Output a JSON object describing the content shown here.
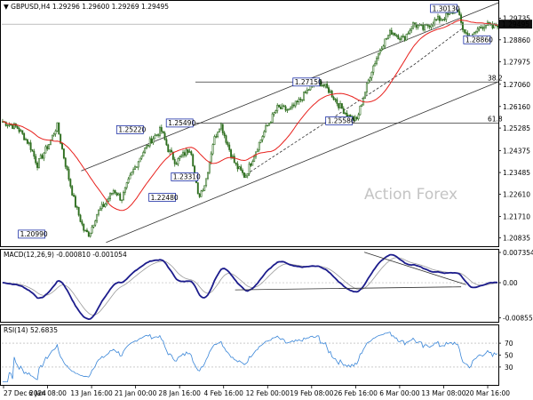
{
  "chart_data": [
    {
      "type": "candlestick",
      "symbol_line": "GBPUSD,H4  1.29296 1.29600 1.29269 1.29495",
      "watermark": "Action Forex",
      "last_price": "1.29495",
      "last_price_value": 1.29495,
      "ylim": [
        1.205,
        1.304
      ],
      "y_ticks": [
        "1.29735",
        "1.29495",
        "1.28860",
        "1.27975",
        "1.27060",
        "1.26160",
        "1.25285",
        "1.24375",
        "1.23485",
        "1.22610",
        "1.21710",
        "1.20835"
      ],
      "y_tick_values": [
        1.29735,
        1.29495,
        1.2886,
        1.27975,
        1.2706,
        1.2616,
        1.25285,
        1.24375,
        1.23485,
        1.2261,
        1.2171,
        1.20835
      ],
      "x_tick_labels": [
        "27 Dec 2024",
        "6 Jan 08:00",
        "13 Jan 16:00",
        "21 Jan 00:00",
        "28 Jan 16:00",
        "4 Feb 16:00",
        "12 Feb 00:00",
        "19 Feb 08:00",
        "26 Feb 16:00",
        "6 Mar 00:00",
        "13 Mar 08:00",
        "20 Mar 16:00"
      ],
      "price_labels": [
        {
          "text": "1.20990",
          "value": 1.2099,
          "at": 0.087,
          "side": "left"
        },
        {
          "text": "1.22480",
          "value": 1.2248,
          "at": 0.35,
          "side": "left"
        },
        {
          "text": "1.23310",
          "value": 1.2331,
          "at": 0.395,
          "side": "left"
        },
        {
          "text": "1.25220",
          "value": 1.2522,
          "at": 0.285,
          "side": "left"
        },
        {
          "text": "1.25490",
          "value": 1.2549,
          "at": 0.385,
          "side": "left"
        },
        {
          "text": "1.27150",
          "value": 1.2715,
          "at": 0.64,
          "side": "left"
        },
        {
          "text": "1.25580",
          "value": 1.2558,
          "at": 0.706,
          "side": "left"
        },
        {
          "text": "1.30130",
          "value": 1.3013,
          "at": 0.917,
          "side": "left"
        },
        {
          "text": "1.28860",
          "value": 1.2886,
          "at": 0.93,
          "side": "right"
        }
      ],
      "fib_levels": [
        {
          "label": "38.2",
          "value": 1.2715
        },
        {
          "label": "61.8",
          "value": 1.2549
        }
      ],
      "channel_lines": [
        {
          "points": [
            [
              0.16,
              1.2355
            ],
            [
              1.0,
              1.3036
            ]
          ]
        },
        {
          "points": [
            [
              0.21,
              1.2065
            ],
            [
              1.0,
              1.2716
            ]
          ]
        },
        {
          "points": [
            [
              0.5,
              1.2351
            ],
            [
              0.83,
              1.2785
            ],
            [
              0.93,
              1.2936
            ]
          ]
        }
      ],
      "sma_color": "#e8211d",
      "candle_color": "#2e6e1f",
      "grid": false
    },
    {
      "type": "line",
      "title": "MACD(12,26,9) -0.000810 -0.001054",
      "ylim": [
        -0.0095,
        0.008
      ],
      "y_ticks": [
        "0.007354",
        "0.00",
        "-0.008558"
      ],
      "y_tick_values": [
        0.007354,
        0.0,
        -0.008558
      ],
      "series_color": "#1c1c8c",
      "signal_color": "#9a9a9a",
      "trend_lines": [
        {
          "points": [
            [
              0.47,
              -0.00175
            ],
            [
              0.925,
              -0.001
            ]
          ]
        },
        {
          "points": [
            [
              0.73,
              0.0074
            ],
            [
              0.935,
              -0.0005
            ]
          ]
        }
      ]
    },
    {
      "type": "line",
      "title": "RSI(14) 52.6835",
      "ylim": [
        0,
        100
      ],
      "y_ticks": [
        "70",
        "50",
        "30"
      ],
      "y_tick_values": [
        70,
        50,
        30
      ],
      "series_color": "#3a86d8",
      "last_value": 52.6835
    }
  ]
}
